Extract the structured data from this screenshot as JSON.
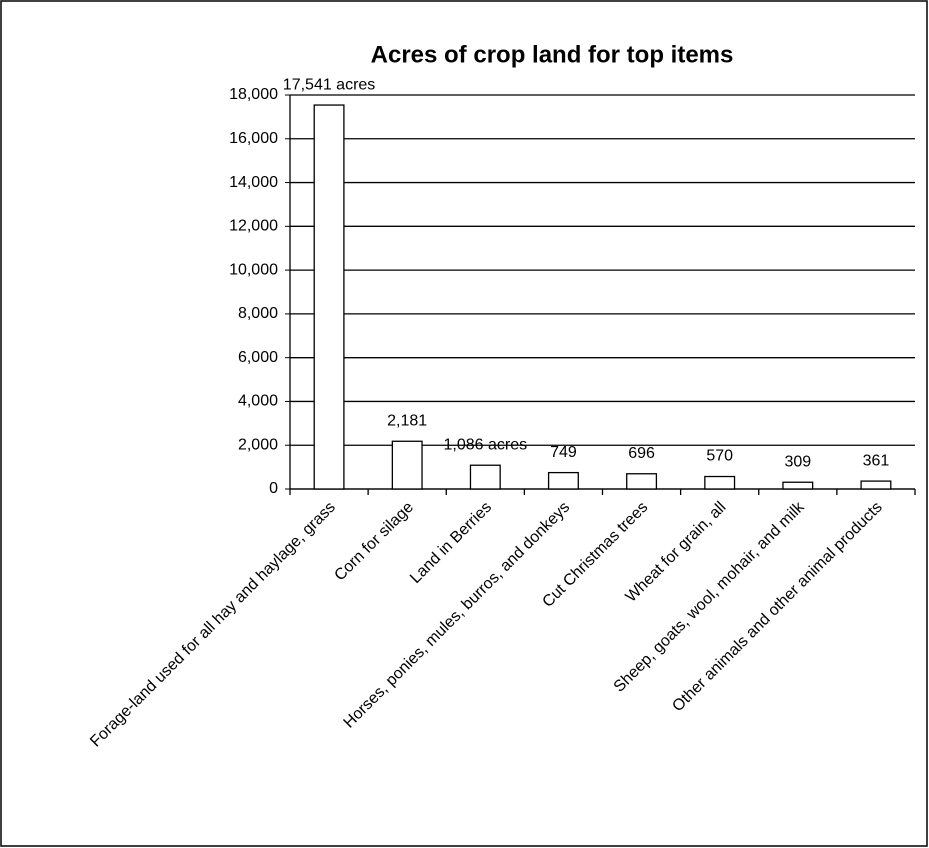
{
  "chart_data": {
    "type": "bar",
    "title": "Acres of crop land for top items",
    "categories": [
      "Forage-land used for all hay and haylage, grass",
      "Corn for silage",
      "Land in Berries",
      "Horses, ponies, mules, burros, and donkeys",
      "Cut Christmas trees",
      "Wheat for grain, all",
      "Sheep, goats, wool, mohair, and milk",
      "Other animals and other animal products"
    ],
    "values": [
      17541,
      2181,
      1086,
      749,
      696,
      570,
      309,
      361
    ],
    "value_labels": [
      "17,541 acres",
      "2,181",
      "1,086 acres",
      "749",
      "696",
      "570",
      "309",
      "361"
    ],
    "color": "#ffffff",
    "ylim": [
      0,
      18000
    ],
    "yticks": [
      0,
      {
        "value": 2000,
        "label": "2,000"
      },
      {
        "value": 4000,
        "label": "4,000"
      },
      {
        "value": 6000,
        "label": "6,000"
      },
      {
        "value": 8000,
        "label": "8,000"
      },
      {
        "value": 10000,
        "label": "10,000"
      },
      {
        "value": 12000,
        "label": "12,000"
      },
      {
        "value": 14000,
        "label": "14,000"
      },
      {
        "value": 16000,
        "label": "16,000"
      },
      {
        "value": 18000,
        "label": "18,000"
      }
    ],
    "grid": true
  }
}
